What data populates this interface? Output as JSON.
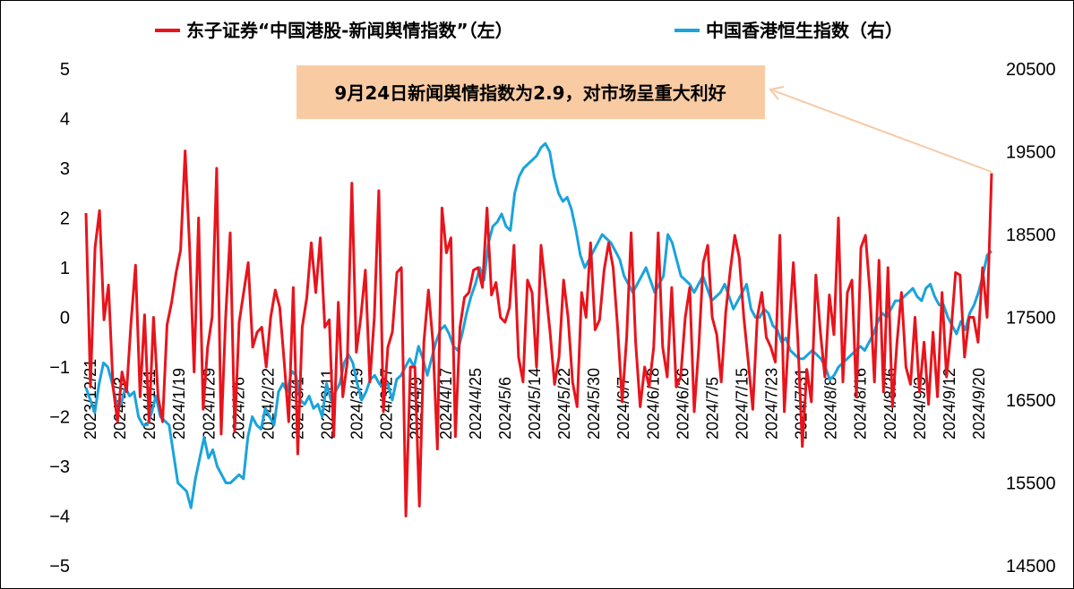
{
  "chart_data": {
    "type": "line",
    "left_axis": {
      "min": -5,
      "max": 5,
      "ticks": [
        "−5",
        "−4",
        "−3",
        "−2",
        "−1",
        "0",
        "1",
        "2",
        "3",
        "4",
        "5"
      ]
    },
    "right_axis": {
      "min": 14500,
      "max": 20500,
      "ticks": [
        "14500",
        "15500",
        "16500",
        "17500",
        "18500",
        "19500",
        "20500"
      ]
    },
    "x_labels": [
      "2023/12/21",
      "2024/1/3",
      "2024/1/11",
      "2024/1/19",
      "2024/1/29",
      "2024/2/6",
      "2024/2/22",
      "2024/3/1",
      "2024/3/11",
      "2024/3/19",
      "2024/3/27",
      "2024/4/9",
      "2024/4/17",
      "2024/4/25",
      "2024/5/6",
      "2024/5/14",
      "2024/5/22",
      "2024/5/30",
      "2024/6/7",
      "2024/6/18",
      "2024/6/26",
      "2024/7/5",
      "2024/7/15",
      "2024/7/23",
      "2024/7/31",
      "2024/8/8",
      "2024/8/16",
      "2024/8/26",
      "2024/9/3",
      "2024/9/12",
      "2024/9/20"
    ],
    "series": [
      {
        "name": "东子证券“中国港股-新闻舆情指数”（左）",
        "axis": "left",
        "color": "#E8141C",
        "values": [
          2.1,
          -1.4,
          1.4,
          2.15,
          -0.05,
          0.65,
          -1.4,
          -2.1,
          -1.1,
          -1.5,
          -0.1,
          1.05,
          -1.6,
          0.05,
          -2.1,
          0.0,
          -1.6,
          -2.1,
          -0.15,
          0.3,
          0.9,
          1.35,
          3.35,
          1.4,
          -1.1,
          2.0,
          -1.85,
          -0.6,
          0.0,
          3.0,
          -2.35,
          0.0,
          1.7,
          -2.3,
          -0.1,
          0.5,
          1.1,
          -0.6,
          -0.3,
          -0.2,
          -1.0,
          0.0,
          0.55,
          0.2,
          -0.9,
          -2.1,
          0.6,
          -2.75,
          -0.2,
          0.4,
          1.5,
          0.5,
          1.6,
          -0.2,
          -0.05,
          -2.4,
          0.3,
          -1.6,
          -0.9,
          2.7,
          -0.7,
          0.0,
          0.95,
          -1.3,
          0.0,
          2.55,
          -1.9,
          -0.6,
          -0.3,
          0.9,
          1.0,
          -4.0,
          -1.0,
          -1.0,
          -3.8,
          -0.5,
          0.55,
          -0.5,
          -2.65,
          2.2,
          1.3,
          1.6,
          -2.4,
          -0.2,
          0.4,
          0.5,
          0.95,
          1.0,
          0.6,
          2.2,
          0.45,
          0.7,
          0.0,
          -0.1,
          0.2,
          1.45,
          -0.8,
          -1.3,
          0.75,
          0.5,
          -1.0,
          1.45,
          0.6,
          -0.3,
          -1.35,
          -0.8,
          0.75,
          0.0,
          -1.3,
          -1.8,
          0.5,
          0.0,
          1.5,
          -0.25,
          -0.05,
          0.95,
          1.5,
          1.0,
          -0.2,
          -1.7,
          -0.4,
          1.7,
          -0.5,
          -1.8,
          -1.0,
          -1.4,
          -0.6,
          1.7,
          -0.6,
          -1.2,
          0.6,
          -1.4,
          -1.2,
          0.0,
          0.6,
          -1.9,
          -0.6,
          1.1,
          1.45,
          0.0,
          -0.35,
          -1.3,
          0.1,
          0.95,
          1.65,
          1.2,
          0.0,
          -0.9,
          -1.85,
          0.0,
          0.5,
          -0.4,
          -0.6,
          -0.9,
          1.65,
          -1.9,
          -0.3,
          1.1,
          -0.45,
          -2.6,
          -1.05,
          -1.7,
          0.85,
          -0.3,
          -1.2,
          0.45,
          -0.35,
          2.0,
          -1.3,
          0.5,
          0.75,
          -1.6,
          1.4,
          1.65,
          0.5,
          -1.3,
          1.15,
          -1.5,
          1.0,
          -1.8,
          -0.5,
          0.5,
          -1.0,
          -1.35,
          0.0,
          -1.5,
          -0.5,
          -1.75,
          -0.3,
          -1.6,
          0.5,
          -1.2,
          -0.3,
          0.9,
          0.85,
          -0.8,
          0.0,
          0.0,
          -0.5,
          1.0,
          0.0,
          2.9
        ]
      },
      {
        "name": "中国香港恒生指数（右）",
        "axis": "right",
        "color": "#1AA3DC",
        "values": [
          16650,
          16500,
          16350,
          16700,
          16950,
          16900,
          16700,
          16450,
          16450,
          16650,
          16550,
          16600,
          16300,
          16200,
          16200,
          16350,
          16550,
          16300,
          16250,
          16200,
          15850,
          15500,
          15450,
          15400,
          15200,
          15550,
          15800,
          16050,
          15800,
          15900,
          15700,
          15600,
          15500,
          15500,
          15550,
          15600,
          15550,
          16050,
          16300,
          16200,
          16150,
          16400,
          16300,
          16200,
          16600,
          16700,
          16600,
          16850,
          16800,
          16500,
          16450,
          16550,
          16400,
          16450,
          16300,
          16700,
          16500,
          16600,
          16700,
          16950,
          17050,
          16950,
          16700,
          16500,
          16600,
          16750,
          16800,
          16700,
          16650,
          16700,
          16500,
          16750,
          16800,
          16900,
          17000,
          16900,
          17150,
          17000,
          16800,
          17000,
          17200,
          17350,
          17400,
          17300,
          17150,
          17100,
          17300,
          17550,
          17750,
          17900,
          18100,
          17950,
          18400,
          18600,
          18650,
          18750,
          18600,
          18550,
          19000,
          19200,
          19300,
          19350,
          19400,
          19450,
          19550,
          19600,
          19500,
          19200,
          19000,
          18900,
          18950,
          18800,
          18550,
          18250,
          18100,
          18200,
          18300,
          18400,
          18500,
          18450,
          18400,
          18300,
          18200,
          18000,
          17900,
          17800,
          17900,
          18000,
          18100,
          17950,
          17800,
          17900,
          18000,
          18500,
          18400,
          18200,
          18000,
          17950,
          17900,
          17800,
          17900,
          18000,
          17850,
          17700,
          17750,
          17800,
          17900,
          17750,
          17600,
          17700,
          17800,
          17900,
          17600,
          17500,
          17500,
          17600,
          17550,
          17400,
          17350,
          17200,
          17250,
          17100,
          17050,
          17000,
          17000,
          17050,
          17100,
          17050,
          17000,
          16900,
          16750,
          16800,
          16900,
          16950,
          17000,
          17050,
          17100,
          17150,
          17100,
          17200,
          17300,
          17450,
          17550,
          17500,
          17600,
          17700,
          17700,
          17750,
          17800,
          17850,
          17750,
          17700,
          17850,
          17900,
          17750,
          17650,
          17650,
          17500,
          17400,
          17300,
          17450,
          17350,
          17550,
          17650,
          17800,
          18000,
          18250,
          18300
        ]
      }
    ],
    "annotation": "9月24日新闻舆情指数为2.9，对市场呈重大利好",
    "legend_position": "top"
  },
  "colors": {
    "red": "#E8141C",
    "blue": "#1AA3DC",
    "annot_bg": "#F9CBA3",
    "arrow": "#F7C9A4"
  }
}
